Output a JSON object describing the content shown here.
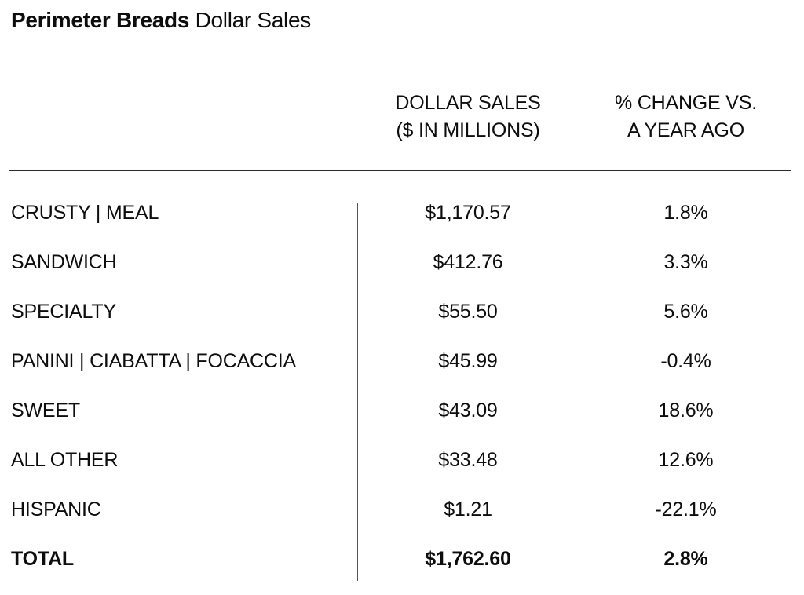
{
  "title": {
    "bold": "Perimeter Breads",
    "regular": " Dollar Sales"
  },
  "header": {
    "dollar_sales_line1": "DOLLAR SALES",
    "dollar_sales_line2": "($ IN MILLIONS)",
    "pct_change_line1": "% CHANGE VS.",
    "pct_change_line2": "A YEAR AGO"
  },
  "rows": [
    {
      "category": "CRUSTY | MEAL",
      "dollar_sales": "$1,170.57",
      "pct_change": "1.8%"
    },
    {
      "category": "SANDWICH",
      "dollar_sales": "$412.76",
      "pct_change": "3.3%"
    },
    {
      "category": "SPECIALTY",
      "dollar_sales": "$55.50",
      "pct_change": "5.6%"
    },
    {
      "category": "PANINI | CIABATTA | FOCACCIA",
      "dollar_sales": "$45.99",
      "pct_change": "-0.4%"
    },
    {
      "category": "SWEET",
      "dollar_sales": "$43.09",
      "pct_change": "18.6%"
    },
    {
      "category": "ALL OTHER",
      "dollar_sales": "$33.48",
      "pct_change": "12.6%"
    },
    {
      "category": "HISPANIC",
      "dollar_sales": "$1.21",
      "pct_change": "-22.1%"
    },
    {
      "category": "TOTAL",
      "dollar_sales": "$1,762.60",
      "pct_change": "2.8%"
    }
  ],
  "colors": {
    "background": "#ffffff",
    "text": "#0d0d0d",
    "rule": "#2b2b2b",
    "divider": "#555555"
  },
  "chart_data": {
    "type": "table",
    "title": "Perimeter Breads Dollar Sales",
    "columns": [
      "",
      "DOLLAR SALES ($ IN MILLIONS)",
      "% CHANGE VS. A YEAR AGO"
    ],
    "rows": [
      [
        "CRUSTY | MEAL",
        1170.57,
        1.8
      ],
      [
        "SANDWICH",
        412.76,
        3.3
      ],
      [
        "SPECIALTY",
        55.5,
        5.6
      ],
      [
        "PANINI | CIABATTA | FOCACCIA",
        45.99,
        -0.4
      ],
      [
        "SWEET",
        43.09,
        18.6
      ],
      [
        "ALL OTHER",
        33.48,
        12.6
      ],
      [
        "HISPANIC",
        1.21,
        -22.1
      ],
      [
        "TOTAL",
        1762.6,
        2.8
      ]
    ],
    "units": {
      "dollar_sales": "millions USD",
      "pct_change": "percent vs. a year ago"
    },
    "layout": {
      "grid": "off",
      "column_dividers": true,
      "header_rule": true,
      "total_row_bold": true
    }
  }
}
